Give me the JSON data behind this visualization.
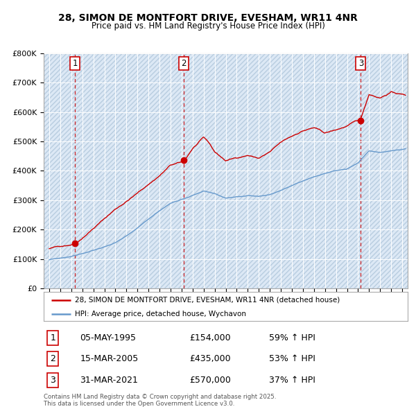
{
  "title": "28, SIMON DE MONTFORT DRIVE, EVESHAM, WR11 4NR",
  "subtitle": "Price paid vs. HM Land Registry's House Price Index (HPI)",
  "background_color": "#ffffff",
  "plot_bg_color": "#dce8f5",
  "hatch_color": "#b8cde0",
  "grid_color": "#ffffff",
  "sale_dates": [
    1995.35,
    2005.21,
    2021.25
  ],
  "sale_prices": [
    154000,
    435000,
    570000
  ],
  "sale_labels": [
    "1",
    "2",
    "3"
  ],
  "sale_date_strs": [
    "05-MAY-1995",
    "15-MAR-2005",
    "31-MAR-2021"
  ],
  "sale_price_strs": [
    "£154,000",
    "£435,000",
    "£570,000"
  ],
  "sale_hpi_strs": [
    "59% ↑ HPI",
    "53% ↑ HPI",
    "37% ↑ HPI"
  ],
  "red_line_color": "#cc0000",
  "blue_line_color": "#6699cc",
  "dashed_line_color": "#cc0000",
  "ylim": [
    0,
    800000
  ],
  "yticks": [
    0,
    100000,
    200000,
    300000,
    400000,
    500000,
    600000,
    700000,
    800000
  ],
  "ytick_labels": [
    "£0",
    "£100K",
    "£200K",
    "£300K",
    "£400K",
    "£500K",
    "£600K",
    "£700K",
    "£800K"
  ],
  "xlim_start": 1992.5,
  "xlim_end": 2025.5,
  "legend_line1": "28, SIMON DE MONTFORT DRIVE, EVESHAM, WR11 4NR (detached house)",
  "legend_line2": "HPI: Average price, detached house, Wychavon",
  "footer": "Contains HM Land Registry data © Crown copyright and database right 2025.\nThis data is licensed under the Open Government Licence v3.0.",
  "red_anchors_x": [
    1993,
    1994,
    1995.35,
    1997,
    1999,
    2001,
    2003,
    2004,
    2005.21,
    2006,
    2007,
    2007.5,
    2008,
    2009,
    2010,
    2011,
    2012,
    2013,
    2014,
    2015,
    2016,
    2017,
    2018,
    2019,
    2020,
    2021.25,
    2022,
    2023,
    2024,
    2025.3
  ],
  "red_anchors_y": [
    135000,
    143000,
    154000,
    210000,
    275000,
    330000,
    390000,
    425000,
    435000,
    480000,
    515000,
    495000,
    465000,
    435000,
    445000,
    455000,
    445000,
    465000,
    495000,
    515000,
    535000,
    545000,
    525000,
    535000,
    548000,
    570000,
    655000,
    645000,
    665000,
    655000
  ],
  "blue_anchors_x": [
    1993,
    1994,
    1995,
    1996,
    1997,
    1998,
    1999,
    2000,
    2001,
    2002,
    2003,
    2004,
    2005,
    2006,
    2007,
    2008,
    2009,
    2010,
    2011,
    2012,
    2013,
    2014,
    2015,
    2016,
    2017,
    2018,
    2019,
    2020,
    2021,
    2022,
    2023,
    2024,
    2025.3
  ],
  "blue_anchors_y": [
    97000,
    102000,
    108000,
    118000,
    128000,
    140000,
    155000,
    175000,
    200000,
    230000,
    260000,
    285000,
    300000,
    315000,
    330000,
    320000,
    305000,
    310000,
    310000,
    308000,
    315000,
    330000,
    345000,
    360000,
    375000,
    385000,
    395000,
    400000,
    422000,
    462000,
    458000,
    462000,
    468000
  ]
}
